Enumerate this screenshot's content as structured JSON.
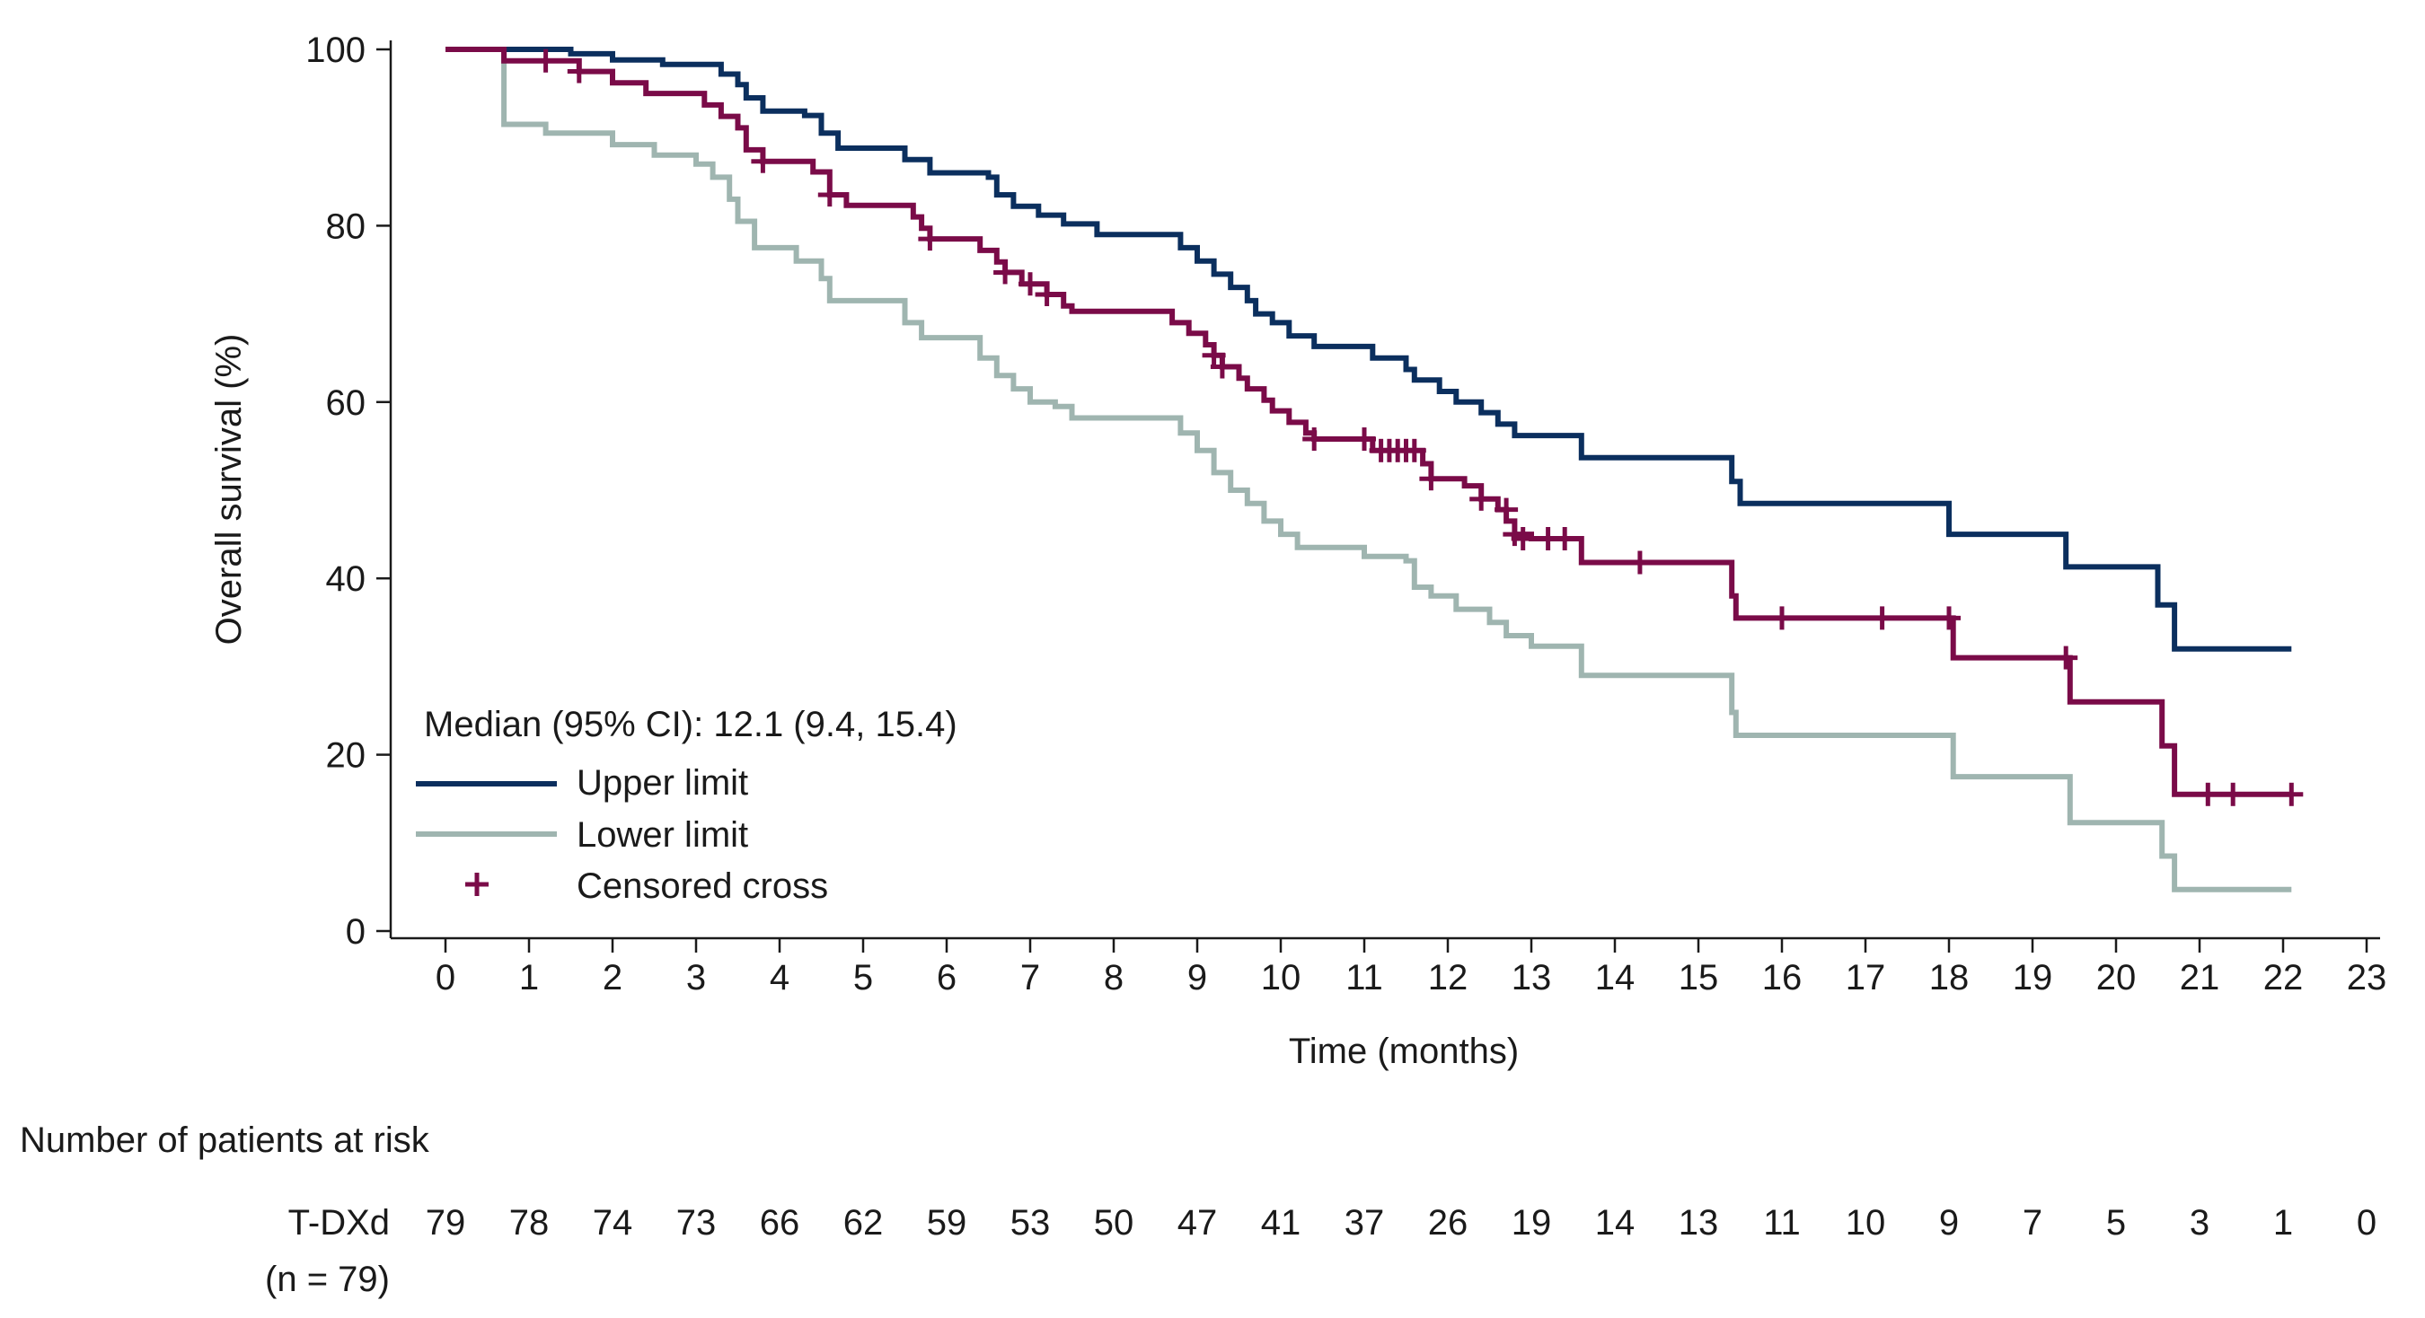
{
  "chart_data": {
    "type": "line",
    "subtype": "kaplan-meier survival curve with confidence limits",
    "ylabel": "Overall survival (%)",
    "xlabel": "Time (months)",
    "xlim": [
      0,
      23
    ],
    "ylim": [
      0,
      100
    ],
    "x_ticks": [
      "0",
      "1",
      "2",
      "3",
      "4",
      "5",
      "6",
      "7",
      "8",
      "9",
      "10",
      "11",
      "12",
      "13",
      "14",
      "15",
      "16",
      "17",
      "18",
      "19",
      "20",
      "21",
      "22",
      "23"
    ],
    "y_ticks": [
      "0",
      "20",
      "40",
      "60",
      "80",
      "100"
    ],
    "grid": false,
    "legend": {
      "placement": "bottom-left",
      "title": "Median (95% CI): 12.1 (9.4, 15.4)",
      "entries": [
        "Upper limit",
        "Lower limit",
        "Censored cross"
      ]
    },
    "colors": {
      "estimate": "#7a0b48",
      "upper": "#0b2f5e",
      "lower": "#9fb5b0",
      "axis": "#1a1a1a"
    },
    "series": [
      {
        "name": "Upper limit",
        "points": [
          [
            0,
            100
          ],
          [
            1,
            100
          ],
          [
            1.5,
            99.5
          ],
          [
            2,
            98.8
          ],
          [
            2.6,
            98.3
          ],
          [
            3,
            98.3
          ],
          [
            3.3,
            97.2
          ],
          [
            3.5,
            96.0
          ],
          [
            3.6,
            94.5
          ],
          [
            3.8,
            93.0
          ],
          [
            4.3,
            92.5
          ],
          [
            4.5,
            90.5
          ],
          [
            4.7,
            88.8
          ],
          [
            5.2,
            88.8
          ],
          [
            5.5,
            87.5
          ],
          [
            5.8,
            86.0
          ],
          [
            6.5,
            85.5
          ],
          [
            6.6,
            83.5
          ],
          [
            6.8,
            82.2
          ],
          [
            7.1,
            81.2
          ],
          [
            7.4,
            80.2
          ],
          [
            7.8,
            79.0
          ],
          [
            8.6,
            79.0
          ],
          [
            8.8,
            77.5
          ],
          [
            9.0,
            76.0
          ],
          [
            9.2,
            74.5
          ],
          [
            9.4,
            73.0
          ],
          [
            9.6,
            71.5
          ],
          [
            9.7,
            70.0
          ],
          [
            9.9,
            69.0
          ],
          [
            10.1,
            67.5
          ],
          [
            10.4,
            66.3
          ],
          [
            10.6,
            66.3
          ],
          [
            11.0,
            66.3
          ],
          [
            11.1,
            65.0
          ],
          [
            11.5,
            63.7
          ],
          [
            11.6,
            62.5
          ],
          [
            11.9,
            61.2
          ],
          [
            12.1,
            60.0
          ],
          [
            12.4,
            58.8
          ],
          [
            12.6,
            57.5
          ],
          [
            12.8,
            56.2
          ],
          [
            13.6,
            53.7
          ],
          [
            15.3,
            53.7
          ],
          [
            15.4,
            51.0
          ],
          [
            15.5,
            48.5
          ],
          [
            16.3,
            48.5
          ],
          [
            17.5,
            48.5
          ],
          [
            18.0,
            45.0
          ],
          [
            19.4,
            45.0
          ],
          [
            19.4,
            41.3
          ],
          [
            20.5,
            41.3
          ],
          [
            20.5,
            37.0
          ],
          [
            20.7,
            32.0
          ],
          [
            22.1,
            32.0
          ]
        ]
      },
      {
        "name": "Estimate",
        "points": [
          [
            0,
            100
          ],
          [
            0.7,
            98.7
          ],
          [
            1.2,
            98.7
          ],
          [
            1.6,
            97.5
          ],
          [
            2,
            96.2
          ],
          [
            2.4,
            95.0
          ],
          [
            3,
            95.0
          ],
          [
            3.1,
            93.7
          ],
          [
            3.3,
            92.4
          ],
          [
            3.5,
            91.1
          ],
          [
            3.6,
            88.6
          ],
          [
            3.8,
            87.3
          ],
          [
            4.4,
            86.1
          ],
          [
            4.6,
            83.5
          ],
          [
            4.8,
            82.3
          ],
          [
            5.4,
            82.3
          ],
          [
            5.6,
            81.0
          ],
          [
            5.7,
            79.7
          ],
          [
            5.8,
            78.5
          ],
          [
            6.3,
            78.5
          ],
          [
            6.4,
            77.2
          ],
          [
            6.6,
            75.9
          ],
          [
            6.7,
            74.7
          ],
          [
            6.9,
            73.4
          ],
          [
            7.2,
            72.2
          ],
          [
            7.4,
            70.9
          ],
          [
            7.5,
            70.3
          ],
          [
            7.9,
            70.3
          ],
          [
            8.6,
            70.3
          ],
          [
            8.7,
            69.0
          ],
          [
            8.9,
            67.8
          ],
          [
            9.1,
            66.5
          ],
          [
            9.2,
            65.3
          ],
          [
            9.3,
            64.0
          ],
          [
            9.5,
            62.7
          ],
          [
            9.6,
            61.5
          ],
          [
            9.8,
            60.2
          ],
          [
            9.9,
            59.0
          ],
          [
            10.1,
            57.7
          ],
          [
            10.3,
            56.5
          ],
          [
            10.4,
            55.8
          ],
          [
            11.0,
            55.8
          ],
          [
            11.1,
            54.5
          ],
          [
            11.6,
            54.5
          ],
          [
            11.7,
            53.0
          ],
          [
            11.8,
            51.3
          ],
          [
            12.2,
            50.5
          ],
          [
            12.4,
            49.0
          ],
          [
            12.6,
            47.8
          ],
          [
            12.7,
            46.5
          ],
          [
            12.8,
            45.0
          ],
          [
            13.0,
            44.5
          ],
          [
            13.3,
            44.5
          ],
          [
            13.6,
            41.8
          ],
          [
            15.3,
            41.8
          ],
          [
            15.4,
            38.0
          ],
          [
            15.45,
            35.5
          ],
          [
            16.5,
            35.5
          ],
          [
            18.0,
            35.5
          ],
          [
            18.05,
            31.0
          ],
          [
            19.4,
            31.0
          ],
          [
            19.45,
            26.0
          ],
          [
            20.5,
            26.0
          ],
          [
            20.55,
            21.0
          ],
          [
            20.7,
            15.5
          ],
          [
            22.1,
            15.5
          ]
        ]
      },
      {
        "name": "Lower limit",
        "points": [
          [
            0,
            100
          ],
          [
            0.7,
            91.5
          ],
          [
            1.2,
            90.5
          ],
          [
            2,
            89.2
          ],
          [
            2.5,
            88.0
          ],
          [
            3,
            87.0
          ],
          [
            3.2,
            85.5
          ],
          [
            3.4,
            83.0
          ],
          [
            3.5,
            80.5
          ],
          [
            3.7,
            77.5
          ],
          [
            4.2,
            76.0
          ],
          [
            4.5,
            74.0
          ],
          [
            4.6,
            71.5
          ],
          [
            5.3,
            71.5
          ],
          [
            5.5,
            69.0
          ],
          [
            5.7,
            67.3
          ],
          [
            6.2,
            67.3
          ],
          [
            6.4,
            65.0
          ],
          [
            6.6,
            63.0
          ],
          [
            6.8,
            61.5
          ],
          [
            7.0,
            60.0
          ],
          [
            7.3,
            59.5
          ],
          [
            7.5,
            58.2
          ],
          [
            8.6,
            58.2
          ],
          [
            8.8,
            56.5
          ],
          [
            9.0,
            54.5
          ],
          [
            9.2,
            52.0
          ],
          [
            9.4,
            50.0
          ],
          [
            9.6,
            48.5
          ],
          [
            9.8,
            46.5
          ],
          [
            10.0,
            45.0
          ],
          [
            10.2,
            43.5
          ],
          [
            10.7,
            43.5
          ],
          [
            11.0,
            42.5
          ],
          [
            11.5,
            42.0
          ],
          [
            11.6,
            39.0
          ],
          [
            11.8,
            38.0
          ],
          [
            12.1,
            36.5
          ],
          [
            12.5,
            35.0
          ],
          [
            12.7,
            33.5
          ],
          [
            13.0,
            32.3
          ],
          [
            13.4,
            32.3
          ],
          [
            13.6,
            29.0
          ],
          [
            15.3,
            29.0
          ],
          [
            15.4,
            24.8
          ],
          [
            15.45,
            22.2
          ],
          [
            18.0,
            22.2
          ],
          [
            18.05,
            17.5
          ],
          [
            19.4,
            17.5
          ],
          [
            19.45,
            12.3
          ],
          [
            20.5,
            12.3
          ],
          [
            20.55,
            8.5
          ],
          [
            20.7,
            4.7
          ],
          [
            22.1,
            4.7
          ]
        ]
      }
    ],
    "censored_points": [
      [
        1.2,
        98.7
      ],
      [
        1.6,
        97.5
      ],
      [
        3.8,
        87.3
      ],
      [
        4.6,
        83.5
      ],
      [
        5.8,
        78.5
      ],
      [
        6.7,
        74.7
      ],
      [
        7.0,
        73.4
      ],
      [
        7.2,
        72.2
      ],
      [
        9.2,
        65.3
      ],
      [
        9.3,
        64.0
      ],
      [
        10.4,
        55.8
      ],
      [
        11.0,
        55.8
      ],
      [
        11.2,
        54.5
      ],
      [
        11.3,
        54.5
      ],
      [
        11.4,
        54.5
      ],
      [
        11.5,
        54.5
      ],
      [
        11.6,
        54.5
      ],
      [
        11.8,
        51.3
      ],
      [
        12.4,
        49.0
      ],
      [
        12.7,
        47.8
      ],
      [
        12.8,
        45.0
      ],
      [
        12.9,
        44.5
      ],
      [
        13.2,
        44.5
      ],
      [
        13.4,
        44.5
      ],
      [
        14.3,
        41.8
      ],
      [
        16.0,
        35.5
      ],
      [
        17.2,
        35.5
      ],
      [
        18.0,
        35.5
      ],
      [
        19.4,
        31.0
      ],
      [
        21.1,
        15.5
      ],
      [
        21.4,
        15.5
      ],
      [
        22.1,
        15.5
      ]
    ]
  },
  "risk_table": {
    "title": "Number of patients at risk",
    "group_label": "T-DXd",
    "group_n": "(n = 79)",
    "values": [
      "79",
      "78",
      "74",
      "73",
      "66",
      "62",
      "59",
      "53",
      "50",
      "47",
      "41",
      "37",
      "26",
      "19",
      "14",
      "13",
      "11",
      "10",
      "9",
      "7",
      "5",
      "3",
      "1",
      "0"
    ]
  }
}
